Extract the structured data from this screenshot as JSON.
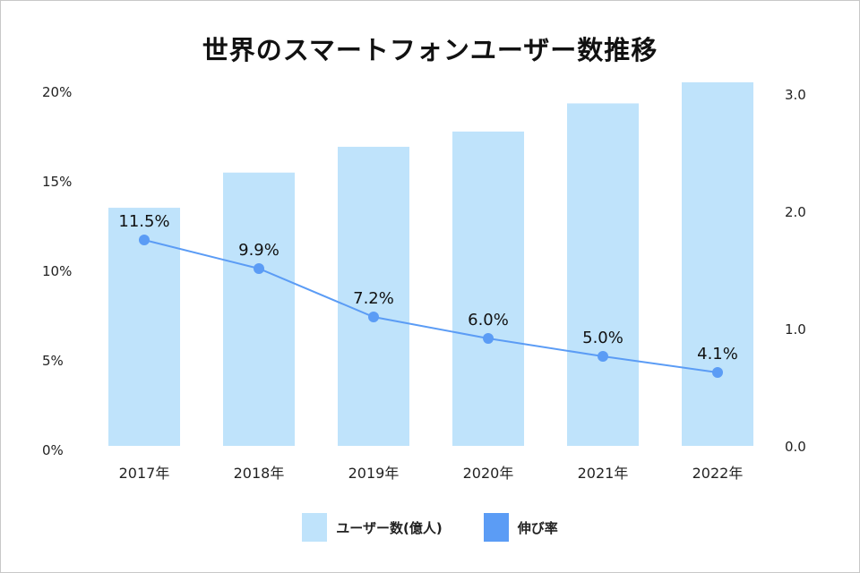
{
  "chart_data": {
    "type": "bar+line",
    "title": "世界のスマートフォンユーザー数推移",
    "categories": [
      "2017年",
      "2018年",
      "2019年",
      "2020年",
      "2021年",
      "2022年"
    ],
    "series": [
      {
        "name": "ユーザー数(億人)",
        "type": "bar",
        "axis": "right",
        "values": [
          2.03,
          2.33,
          2.55,
          2.68,
          2.92,
          3.1
        ],
        "color": "#bfe3fb"
      },
      {
        "name": "伸び率",
        "type": "line",
        "axis": "left",
        "values": [
          11.5,
          9.9,
          7.2,
          6.0,
          5.0,
          4.1
        ],
        "labels": [
          "11.5%",
          "9.9%",
          "7.2%",
          "6.0%",
          "5.0%",
          "4.1%"
        ],
        "color": "#5b9cf5"
      }
    ],
    "left_axis": {
      "ylim": [
        0,
        20
      ],
      "ticks": [
        "0%",
        "5%",
        "10%",
        "15%",
        "20%"
      ]
    },
    "right_axis": {
      "ylim": [
        0,
        3
      ],
      "ticks": [
        "0.0",
        "1.0",
        "2.0",
        "3.0"
      ]
    },
    "grid": false,
    "legend": "bottom"
  }
}
